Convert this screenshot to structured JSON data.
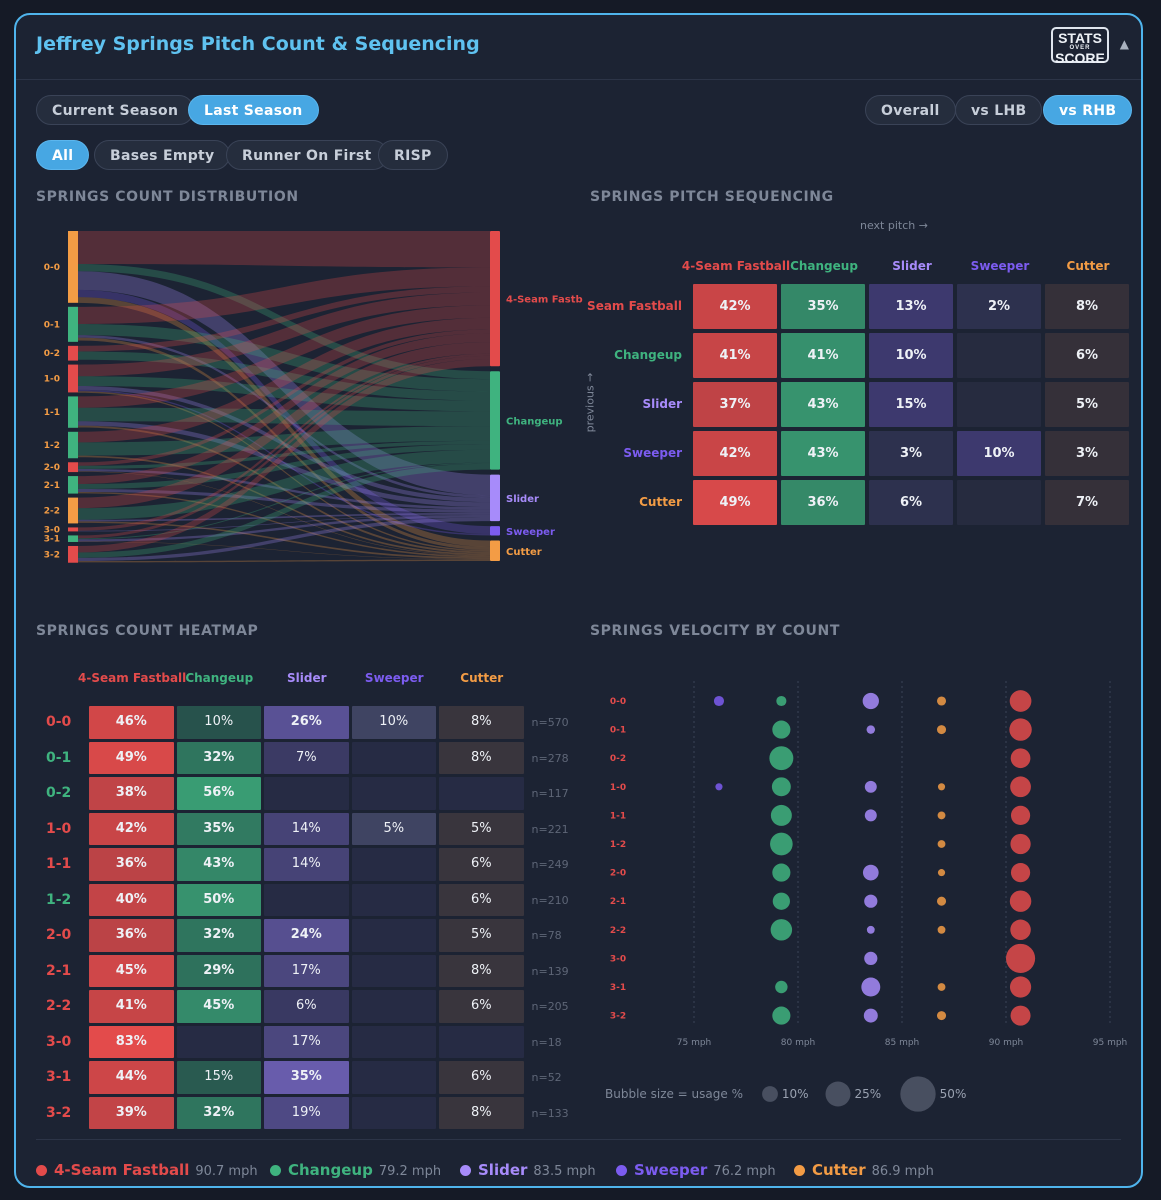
{
  "title": "Jeffrey Springs Pitch Count & Sequencing",
  "logo": {
    "line1": "STATS",
    "line2": "OVER",
    "line3": "SCORE"
  },
  "collapse_icon": "triangle-up-icon",
  "season_tabs": [
    {
      "label": "Current Season",
      "active": false
    },
    {
      "label": "Last Season",
      "active": true
    }
  ],
  "split_tabs": [
    {
      "label": "Overall",
      "active": false
    },
    {
      "label": "vs LHB",
      "active": false
    },
    {
      "label": "vs RHB",
      "active": true
    }
  ],
  "base_tabs": [
    {
      "label": "All",
      "active": true
    },
    {
      "label": "Bases Empty",
      "active": false
    },
    {
      "label": "Runner On First",
      "active": false
    },
    {
      "label": "RISP",
      "active": false
    }
  ],
  "colors": {
    "fastball": "#e34b4b",
    "changeup": "#3fb37f",
    "slider": "#a78bfa",
    "sweeper": "#7c5cf0",
    "cutter": "#f39c45"
  },
  "sections": {
    "count_distribution": "SPRINGS COUNT DISTRIBUTION",
    "pitch_sequencing": "SPRINGS PITCH SEQUENCING",
    "count_heatmap": "SPRINGS COUNT HEATMAP",
    "velocity_by_count": "SPRINGS VELOCITY BY COUNT"
  },
  "sankey": {
    "counts": [
      "0-0",
      "0-1",
      "0-2",
      "1-0",
      "1-1",
      "1-2",
      "2-0",
      "2-1",
      "2-2",
      "3-0",
      "3-1",
      "3-2"
    ],
    "count_n": [
      570,
      278,
      117,
      221,
      249,
      210,
      78,
      139,
      205,
      18,
      52,
      133
    ],
    "pitch_labels": [
      "4-Seam Fastb",
      "Changeup",
      "Slider",
      "Sweeper",
      "Cutter"
    ]
  },
  "sequencing": {
    "axis_next": "next pitch →",
    "axis_prev": "previous →",
    "columns": [
      "4-Seam Fastball",
      "Changeup",
      "Slider",
      "Sweeper",
      "Cutter"
    ],
    "rows": [
      {
        "label": "Seam Fastball",
        "values": [
          "42%",
          "35%",
          "13%",
          "2%",
          "8%"
        ]
      },
      {
        "label": "Changeup",
        "values": [
          "41%",
          "41%",
          "10%",
          "",
          "6%"
        ]
      },
      {
        "label": "Slider",
        "values": [
          "37%",
          "43%",
          "15%",
          "",
          "5%"
        ]
      },
      {
        "label": "Sweeper",
        "values": [
          "42%",
          "43%",
          "3%",
          "10%",
          "3%"
        ]
      },
      {
        "label": "Cutter",
        "values": [
          "49%",
          "36%",
          "6%",
          "",
          "7%"
        ]
      }
    ]
  },
  "heatmap": {
    "columns": [
      "4-Seam Fastball",
      "Changeup",
      "Slider",
      "Sweeper",
      "Cutter"
    ],
    "rows": [
      {
        "count": "0-0",
        "values": [
          "46%",
          "10%",
          "26%",
          "10%",
          "8%"
        ],
        "n": "n=570"
      },
      {
        "count": "0-1",
        "values": [
          "49%",
          "32%",
          "7%",
          "",
          "8%"
        ],
        "n": "n=278"
      },
      {
        "count": "0-2",
        "values": [
          "38%",
          "56%",
          "",
          "",
          ""
        ],
        "n": "n=117"
      },
      {
        "count": "1-0",
        "values": [
          "42%",
          "35%",
          "14%",
          "5%",
          "5%"
        ],
        "n": "n=221"
      },
      {
        "count": "1-1",
        "values": [
          "36%",
          "43%",
          "14%",
          "",
          "6%"
        ],
        "n": "n=249"
      },
      {
        "count": "1-2",
        "values": [
          "40%",
          "50%",
          "",
          "",
          "6%"
        ],
        "n": "n=210"
      },
      {
        "count": "2-0",
        "values": [
          "36%",
          "32%",
          "24%",
          "",
          "5%"
        ],
        "n": "n=78"
      },
      {
        "count": "2-1",
        "values": [
          "45%",
          "29%",
          "17%",
          "",
          "8%"
        ],
        "n": "n=139"
      },
      {
        "count": "2-2",
        "values": [
          "41%",
          "45%",
          "6%",
          "",
          "6%"
        ],
        "n": "n=205"
      },
      {
        "count": "3-0",
        "values": [
          "83%",
          "",
          "17%",
          "",
          ""
        ],
        "n": "n=18"
      },
      {
        "count": "3-1",
        "values": [
          "44%",
          "15%",
          "35%",
          "",
          "6%"
        ],
        "n": "n=52"
      },
      {
        "count": "3-2",
        "values": [
          "39%",
          "32%",
          "19%",
          "",
          "8%"
        ],
        "n": "n=133"
      }
    ]
  },
  "velocity": {
    "x_ticks": [
      "75 mph",
      "80 mph",
      "85 mph",
      "90 mph",
      "95 mph"
    ],
    "x_range": [
      75,
      95
    ],
    "pitch_mph": [
      90.7,
      79.2,
      83.5,
      76.2,
      86.9
    ],
    "bubble_legend_label": "Bubble size = usage %",
    "bubble_sizes": [
      "10%",
      "25%",
      "50%"
    ]
  },
  "legend": [
    {
      "name": "4-Seam Fastball",
      "mph": "90.7 mph"
    },
    {
      "name": "Changeup",
      "mph": "79.2 mph"
    },
    {
      "name": "Slider",
      "mph": "83.5 mph"
    },
    {
      "name": "Sweeper",
      "mph": "76.2 mph"
    },
    {
      "name": "Cutter",
      "mph": "86.9 mph"
    }
  ]
}
